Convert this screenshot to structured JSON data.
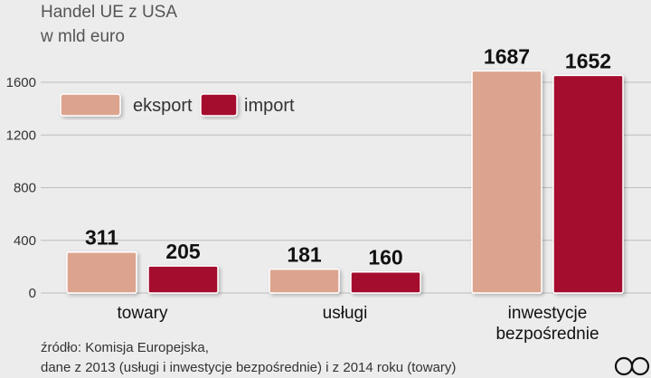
{
  "chart_data": {
    "type": "bar",
    "title": "Handel UE z USA",
    "subtitle": "w mld euro",
    "categories": [
      [
        "towary"
      ],
      [
        "usługi"
      ],
      [
        "inwestycje",
        "bezpośrednie"
      ]
    ],
    "series": [
      {
        "name": "eksport",
        "values": [
          311,
          181,
          1687
        ],
        "color": "#dca48e"
      },
      {
        "name": "import",
        "values": [
          205,
          160,
          1652
        ],
        "color": "#a50f2d"
      }
    ],
    "yticks": [
      0,
      400,
      800,
      1200,
      1600
    ],
    "ylim": [
      0,
      1700
    ],
    "grid": true,
    "legend_position": "top-left"
  },
  "footnote": {
    "line1": "źródło: Komisja Europejska,",
    "line2": "dane z 2013 (usługi i inwestycje bezpośrednie) i z 2014 roku (towary)"
  },
  "logo": "PAP"
}
